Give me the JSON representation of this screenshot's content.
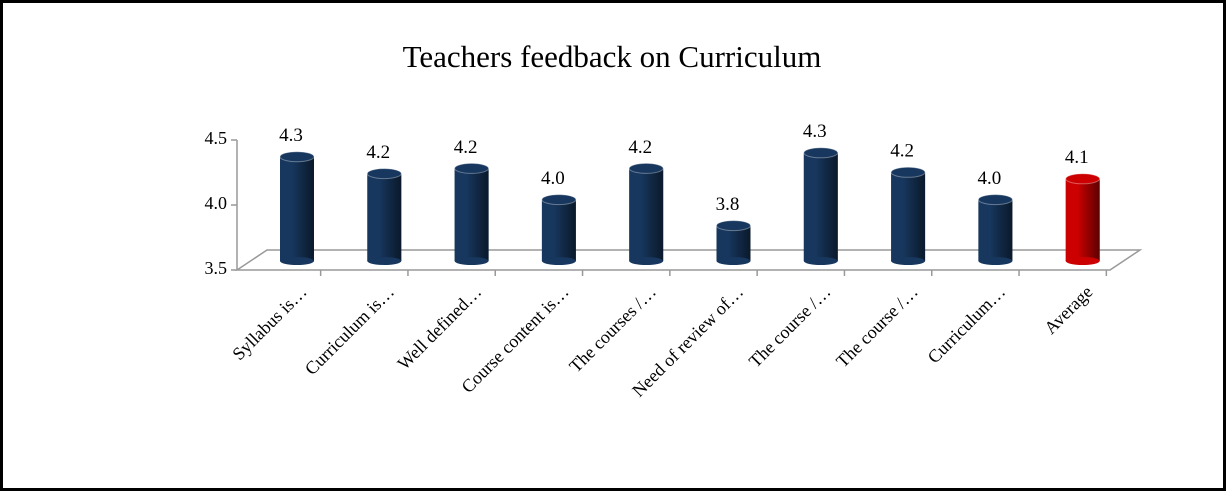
{
  "chart_data": {
    "type": "bar",
    "title": "Teachers feedback on Curriculum",
    "categories": [
      "Syllabus is…",
      "Curriculum is…",
      "Well defined…",
      "Course content is…",
      "The courses /…",
      "Need of review of…",
      "The course /…",
      "The course /…",
      "Curriculum…",
      "Average"
    ],
    "values": [
      4.31,
      4.18,
      4.22,
      3.98,
      4.22,
      3.78,
      4.34,
      4.19,
      3.98,
      4.14
    ],
    "value_labels": [
      "4.3",
      "4.2",
      "4.2",
      "4.0",
      "4.2",
      "3.8",
      "4.3",
      "4.2",
      "4.0",
      "4.1"
    ],
    "colors": [
      "#17375e",
      "#17375e",
      "#17375e",
      "#17375e",
      "#17375e",
      "#17375e",
      "#17375e",
      "#17375e",
      "#17375e",
      "#cc0000"
    ],
    "ylim": [
      3.5,
      4.5
    ],
    "yticks": [
      3.5,
      {
        "value": 4,
        "label": "4.0"
      },
      4.5
    ]
  }
}
